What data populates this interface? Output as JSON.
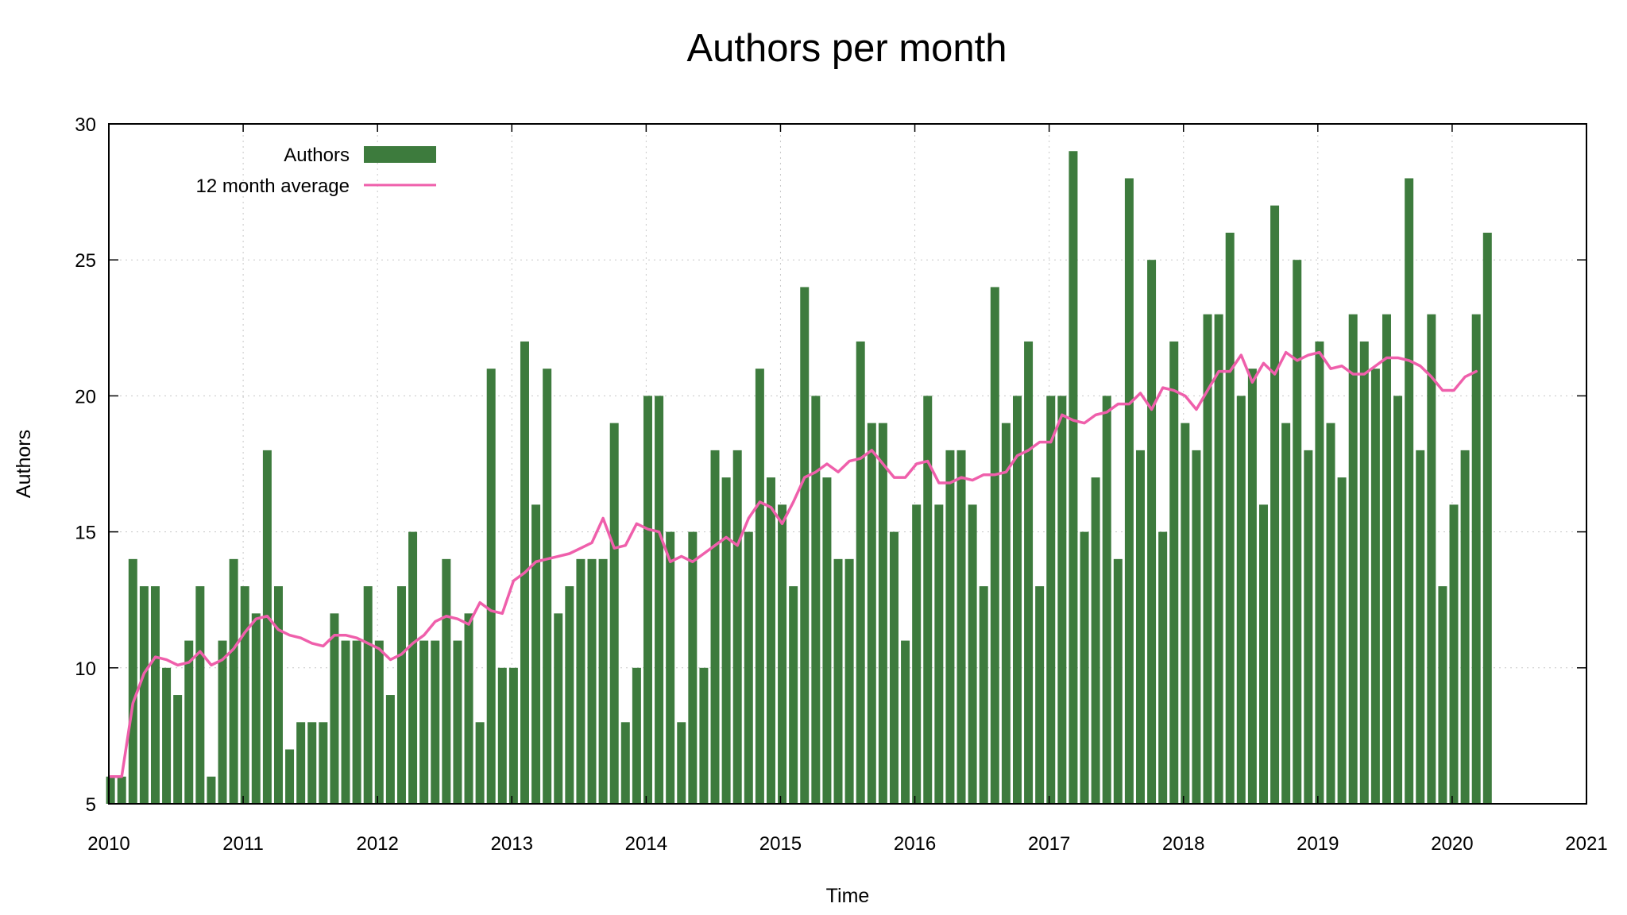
{
  "chart_data": {
    "type": "bar",
    "title": "Authors per month",
    "xlabel": "Time",
    "ylabel": "Authors",
    "xlim": [
      2010,
      2021
    ],
    "ylim": [
      5,
      30
    ],
    "x_ticks": [
      "2010",
      "2011",
      "2012",
      "2013",
      "2014",
      "2015",
      "2016",
      "2017",
      "2018",
      "2019",
      "2020",
      "2021"
    ],
    "y_ticks": [
      "5",
      "10",
      "15",
      "20",
      "25",
      "30"
    ],
    "grid": true,
    "legend_position": "top-left",
    "start_month": "2010-01",
    "colors": {
      "bars": "#3d7b3d",
      "average": "#ef5fab",
      "grid": "#c8c8c8"
    },
    "series": [
      {
        "name": "Authors",
        "type": "bar",
        "values": [
          6,
          6,
          14,
          13,
          13,
          10,
          9,
          11,
          13,
          6,
          11,
          14,
          13,
          12,
          18,
          13,
          7,
          8,
          8,
          8,
          12,
          11,
          11,
          13,
          11,
          9,
          13,
          15,
          11,
          11,
          14,
          11,
          12,
          8,
          21,
          10,
          10,
          22,
          16,
          21,
          12,
          13,
          14,
          14,
          14,
          19,
          8,
          10,
          20,
          20,
          15,
          8,
          15,
          10,
          18,
          17,
          18,
          15,
          21,
          17,
          16,
          13,
          24,
          20,
          17,
          14,
          14,
          22,
          19,
          19,
          15,
          11,
          16,
          20,
          16,
          18,
          18,
          16,
          13,
          24,
          19,
          20,
          22,
          13,
          20,
          20,
          29,
          15,
          17,
          20,
          14,
          28,
          18,
          25,
          15,
          22,
          19,
          18,
          23,
          23,
          26,
          20,
          21,
          16,
          27,
          19,
          25,
          18,
          22,
          19,
          17,
          23,
          22,
          21,
          23,
          20,
          28,
          18,
          23,
          13,
          16,
          18,
          23,
          26
        ]
      },
      {
        "name": "12 month average",
        "type": "line",
        "values": [
          6,
          6,
          8.7,
          9.8,
          10.4,
          10.3,
          10.1,
          10.2,
          10.6,
          10.1,
          10.3,
          10.7,
          11.3,
          11.8,
          11.9,
          11.4,
          11.2,
          11.1,
          10.9,
          10.8,
          11.2,
          11.2,
          11.1,
          10.9,
          10.7,
          10.3,
          10.5,
          10.9,
          11.2,
          11.7,
          11.9,
          11.8,
          11.6,
          12.4,
          12.1,
          12.0,
          13.2,
          13.5,
          13.9,
          14.0,
          14.1,
          14.2,
          14.4,
          14.6,
          15.5,
          14.4,
          14.5,
          15.3,
          15.1,
          15.0,
          13.9,
          14.1,
          13.9,
          14.2,
          14.5,
          14.8,
          14.5,
          15.5,
          16.1,
          15.9,
          15.3,
          16.1,
          17.0,
          17.2,
          17.5,
          17.2,
          17.6,
          17.7,
          18.0,
          17.5,
          17.0,
          17.0,
          17.5,
          17.6,
          16.8,
          16.8,
          17.0,
          16.9,
          17.1,
          17.1,
          17.2,
          17.8,
          18.0,
          18.3,
          18.3,
          19.3,
          19.1,
          19.0,
          19.3,
          19.4,
          19.7,
          19.7,
          20.1,
          19.5,
          20.3,
          20.2,
          20.0,
          19.5,
          20.2,
          20.9,
          20.9,
          21.5,
          20.5,
          21.2,
          20.8,
          21.6,
          21.3,
          21.5,
          21.6,
          21.0,
          21.1,
          20.8,
          20.8,
          21.1,
          21.4,
          21.4,
          21.3,
          21.1,
          20.7,
          20.2,
          20.2,
          20.7,
          20.9
        ]
      }
    ]
  }
}
